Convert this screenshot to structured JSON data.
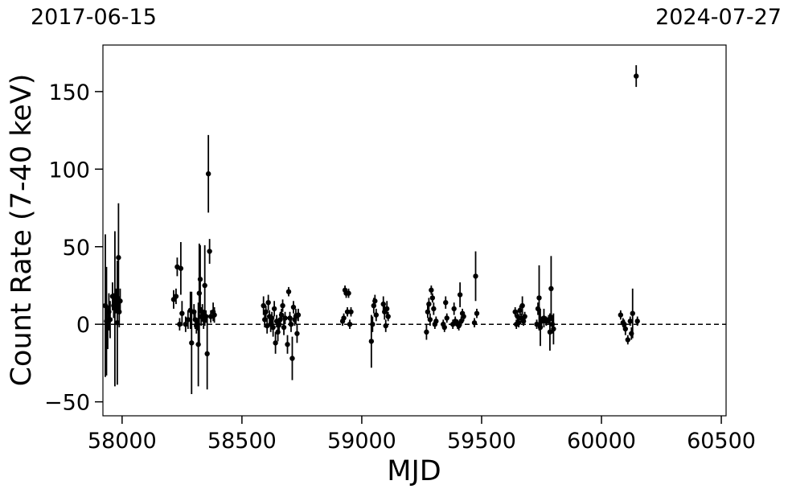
{
  "top_labels": {
    "left": "2017-06-15",
    "right": "2024-07-27"
  },
  "chart_data": {
    "type": "scatter",
    "title": "",
    "xlabel": "MJD",
    "ylabel": "Count Rate (7-40 keV)",
    "xlim": [
      57920,
      60520
    ],
    "ylim": [
      -59,
      180
    ],
    "xticks": [
      58000,
      58500,
      59000,
      59500,
      60000,
      60500
    ],
    "xtick_labels": [
      "58000",
      "58500",
      "59000",
      "59500",
      "60000",
      "60500"
    ],
    "yticks": [
      -50,
      0,
      50,
      100,
      150
    ],
    "ytick_labels": [
      "−50",
      "0",
      "50",
      "100",
      "150"
    ],
    "zero_line": {
      "y": 0,
      "style": "dashed"
    },
    "grid": false,
    "colors": {
      "points": "#000000",
      "errorbars": "#000000",
      "axes": "#000000"
    },
    "series": [
      {
        "points": [
          [
            57930,
            12,
            46
          ],
          [
            57935,
            2,
            35
          ],
          [
            57940,
            -2,
            14
          ],
          [
            57945,
            8,
            12
          ],
          [
            57950,
            3,
            12
          ],
          [
            57960,
            18,
            9
          ],
          [
            57965,
            12,
            8
          ],
          [
            57970,
            10,
            50
          ],
          [
            57975,
            15,
            8
          ],
          [
            57980,
            1,
            40
          ],
          [
            57985,
            43,
            35
          ],
          [
            57988,
            8,
            10
          ],
          [
            57992,
            15,
            8
          ],
          [
            58215,
            16,
            6
          ],
          [
            58225,
            18,
            5
          ],
          [
            58230,
            37,
            6
          ],
          [
            58240,
            0,
            4
          ],
          [
            58245,
            36,
            17
          ],
          [
            58250,
            7,
            8
          ],
          [
            58265,
            0,
            5
          ],
          [
            58275,
            3,
            6
          ],
          [
            58285,
            9,
            12
          ],
          [
            58290,
            -12,
            33
          ],
          [
            58300,
            8,
            5
          ],
          [
            58305,
            3,
            6
          ],
          [
            58310,
            -1,
            5
          ],
          [
            58315,
            0,
            4
          ],
          [
            58318,
            -13,
            27
          ],
          [
            58322,
            20,
            32
          ],
          [
            58326,
            29,
            22
          ],
          [
            58330,
            5,
            6
          ],
          [
            58335,
            8,
            5
          ],
          [
            58340,
            3,
            6
          ],
          [
            58345,
            25,
            26
          ],
          [
            58350,
            5,
            4
          ],
          [
            58355,
            -19,
            23
          ],
          [
            58360,
            97,
            25
          ],
          [
            58365,
            47,
            8
          ],
          [
            58370,
            5,
            4
          ],
          [
            58380,
            8,
            6
          ],
          [
            58385,
            6,
            5
          ],
          [
            58590,
            12,
            6
          ],
          [
            58595,
            3,
            5
          ],
          [
            58600,
            8,
            4
          ],
          [
            58605,
            -1,
            5
          ],
          [
            58610,
            14,
            5
          ],
          [
            58615,
            5,
            4
          ],
          [
            58620,
            0,
            5
          ],
          [
            58625,
            4,
            4
          ],
          [
            58630,
            -2,
            6
          ],
          [
            58635,
            10,
            5
          ],
          [
            58640,
            -12,
            7
          ],
          [
            58645,
            2,
            4
          ],
          [
            58650,
            -5,
            6
          ],
          [
            58655,
            0,
            4
          ],
          [
            58660,
            3,
            5
          ],
          [
            58665,
            6,
            4
          ],
          [
            58670,
            12,
            4
          ],
          [
            58675,
            -2,
            5
          ],
          [
            58680,
            4,
            4
          ],
          [
            58690,
            -13,
            6
          ],
          [
            58695,
            21,
            3
          ],
          [
            58700,
            4,
            4
          ],
          [
            58705,
            0,
            5
          ],
          [
            58710,
            -22,
            14
          ],
          [
            58715,
            11,
            4
          ],
          [
            58720,
            3,
            4
          ],
          [
            58725,
            5,
            5
          ],
          [
            58730,
            -6,
            6
          ],
          [
            58735,
            6,
            4
          ],
          [
            58920,
            2,
            3
          ],
          [
            58925,
            4,
            3
          ],
          [
            58930,
            22,
            3
          ],
          [
            58935,
            20,
            3
          ],
          [
            58940,
            8,
            3
          ],
          [
            58945,
            20,
            3
          ],
          [
            58950,
            0,
            3
          ],
          [
            58955,
            8,
            3
          ],
          [
            59040,
            -11,
            17
          ],
          [
            59045,
            0,
            5
          ],
          [
            59050,
            12,
            5
          ],
          [
            59055,
            15,
            4
          ],
          [
            59060,
            6,
            4
          ],
          [
            59090,
            13,
            5
          ],
          [
            59095,
            8,
            5
          ],
          [
            59100,
            -1,
            4
          ],
          [
            59105,
            10,
            5
          ],
          [
            59110,
            5,
            3
          ],
          [
            59270,
            -5,
            5
          ],
          [
            59275,
            8,
            4
          ],
          [
            59280,
            13,
            4
          ],
          [
            59285,
            3,
            4
          ],
          [
            59290,
            22,
            3
          ],
          [
            59295,
            17,
            3
          ],
          [
            59300,
            10,
            4
          ],
          [
            59305,
            0,
            3
          ],
          [
            59310,
            2,
            3
          ],
          [
            59340,
            0,
            3
          ],
          [
            59345,
            -2,
            3
          ],
          [
            59350,
            14,
            4
          ],
          [
            59355,
            4,
            3
          ],
          [
            59380,
            0,
            3
          ],
          [
            59385,
            10,
            4
          ],
          [
            59390,
            2,
            3
          ],
          [
            59400,
            0,
            3
          ],
          [
            59405,
            -1,
            3
          ],
          [
            59410,
            19,
            8
          ],
          [
            59415,
            2,
            3
          ],
          [
            59420,
            7,
            3
          ],
          [
            59425,
            5,
            3
          ],
          [
            59470,
            1,
            3
          ],
          [
            59475,
            31,
            16
          ],
          [
            59480,
            7,
            3
          ],
          [
            59640,
            8,
            3
          ],
          [
            59645,
            0,
            3
          ],
          [
            59650,
            5,
            4
          ],
          [
            59655,
            1,
            3
          ],
          [
            59660,
            9,
            3
          ],
          [
            59665,
            4,
            3
          ],
          [
            59670,
            12,
            6
          ],
          [
            59675,
            2,
            3
          ],
          [
            59680,
            5,
            3
          ],
          [
            59730,
            0,
            3
          ],
          [
            59735,
            10,
            4
          ],
          [
            59740,
            17,
            21
          ],
          [
            59745,
            -2,
            12
          ],
          [
            59750,
            2,
            3
          ],
          [
            59760,
            4,
            6
          ],
          [
            59770,
            2,
            3
          ],
          [
            59780,
            3,
            3
          ],
          [
            59785,
            -5,
            12
          ],
          [
            59790,
            23,
            21
          ],
          [
            59795,
            0,
            6
          ],
          [
            59800,
            -3,
            10
          ],
          [
            60080,
            6,
            3
          ],
          [
            60090,
            1,
            3
          ],
          [
            60095,
            0,
            3
          ],
          [
            60100,
            -3,
            4
          ],
          [
            60110,
            -10,
            3
          ],
          [
            60120,
            2,
            3
          ],
          [
            60125,
            -6,
            4
          ],
          [
            60130,
            7,
            16
          ],
          [
            60145,
            160,
            7
          ],
          [
            60150,
            2,
            3
          ]
        ]
      }
    ]
  }
}
